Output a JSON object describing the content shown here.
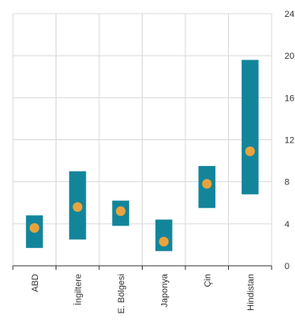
{
  "chart_data": {
    "type": "range-bar",
    "categories": [
      "ABD",
      "İngiltere",
      "E. Bölgesi",
      "Japonya",
      "Çin",
      "Hindistan"
    ],
    "series": [
      {
        "values_low": [
          1.7,
          2.5,
          3.8,
          1.4,
          5.5,
          6.8
        ]
      },
      {
        "values_high": [
          4.8,
          9.0,
          6.2,
          4.4,
          9.5,
          19.6
        ]
      },
      {
        "values_point": [
          3.6,
          5.6,
          5.2,
          2.3,
          7.8,
          10.9
        ]
      }
    ],
    "y_ticks": [
      0,
      4,
      8,
      12,
      16,
      20,
      24
    ],
    "y_tick_labels": [
      "0",
      "4",
      "8",
      "12",
      "16",
      "20",
      "24"
    ],
    "ylim": [
      0,
      24
    ],
    "grid": true,
    "colors": {
      "range_bar": "#13859B",
      "point": "#E8A33D",
      "grid": "#D9D9D9",
      "axis": "#333333"
    }
  }
}
